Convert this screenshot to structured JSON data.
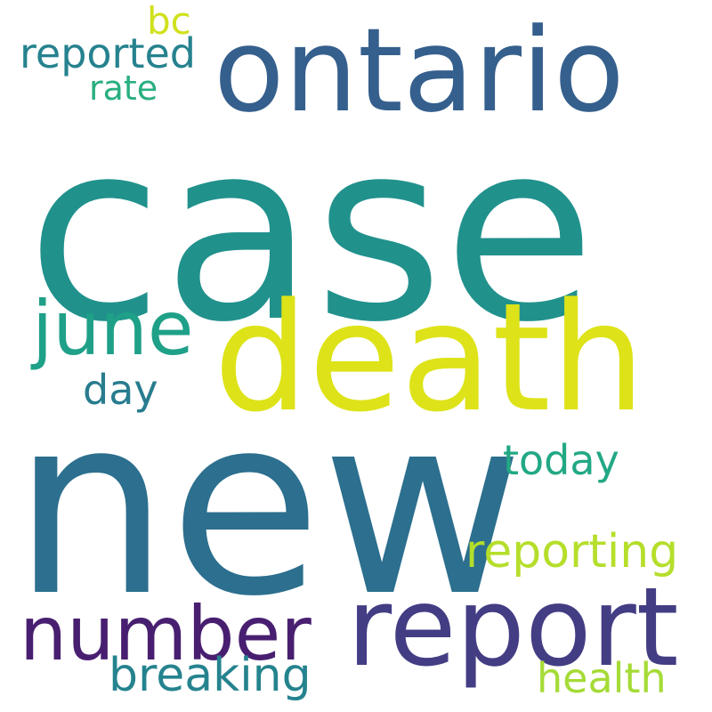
{
  "words": [
    {
      "key": "case",
      "text": "case",
      "color": "#21918c"
    },
    {
      "key": "new",
      "text": "new",
      "color": "#2c6f8e"
    },
    {
      "key": "death",
      "text": "death",
      "color": "#dde318"
    },
    {
      "key": "ontario",
      "text": "ontario",
      "color": "#355f8d"
    },
    {
      "key": "report",
      "text": "report",
      "color": "#433d84"
    },
    {
      "key": "number",
      "text": "number",
      "color": "#481f70"
    },
    {
      "key": "june",
      "text": "june",
      "color": "#1fa088"
    },
    {
      "key": "reporting",
      "text": "reporting",
      "color": "#b5de2b"
    },
    {
      "key": "reported",
      "text": "reported",
      "color": "#26828e"
    },
    {
      "key": "breaking",
      "text": "breaking",
      "color": "#25838e"
    },
    {
      "key": "today",
      "text": "today",
      "color": "#22a884"
    },
    {
      "key": "health",
      "text": "health",
      "color": "#a5db36"
    },
    {
      "key": "day",
      "text": "day",
      "color": "#287c8e"
    },
    {
      "key": "rate",
      "text": "rate",
      "color": "#29af7f"
    },
    {
      "key": "bc",
      "text": "bc",
      "color": "#d0e11c"
    }
  ]
}
